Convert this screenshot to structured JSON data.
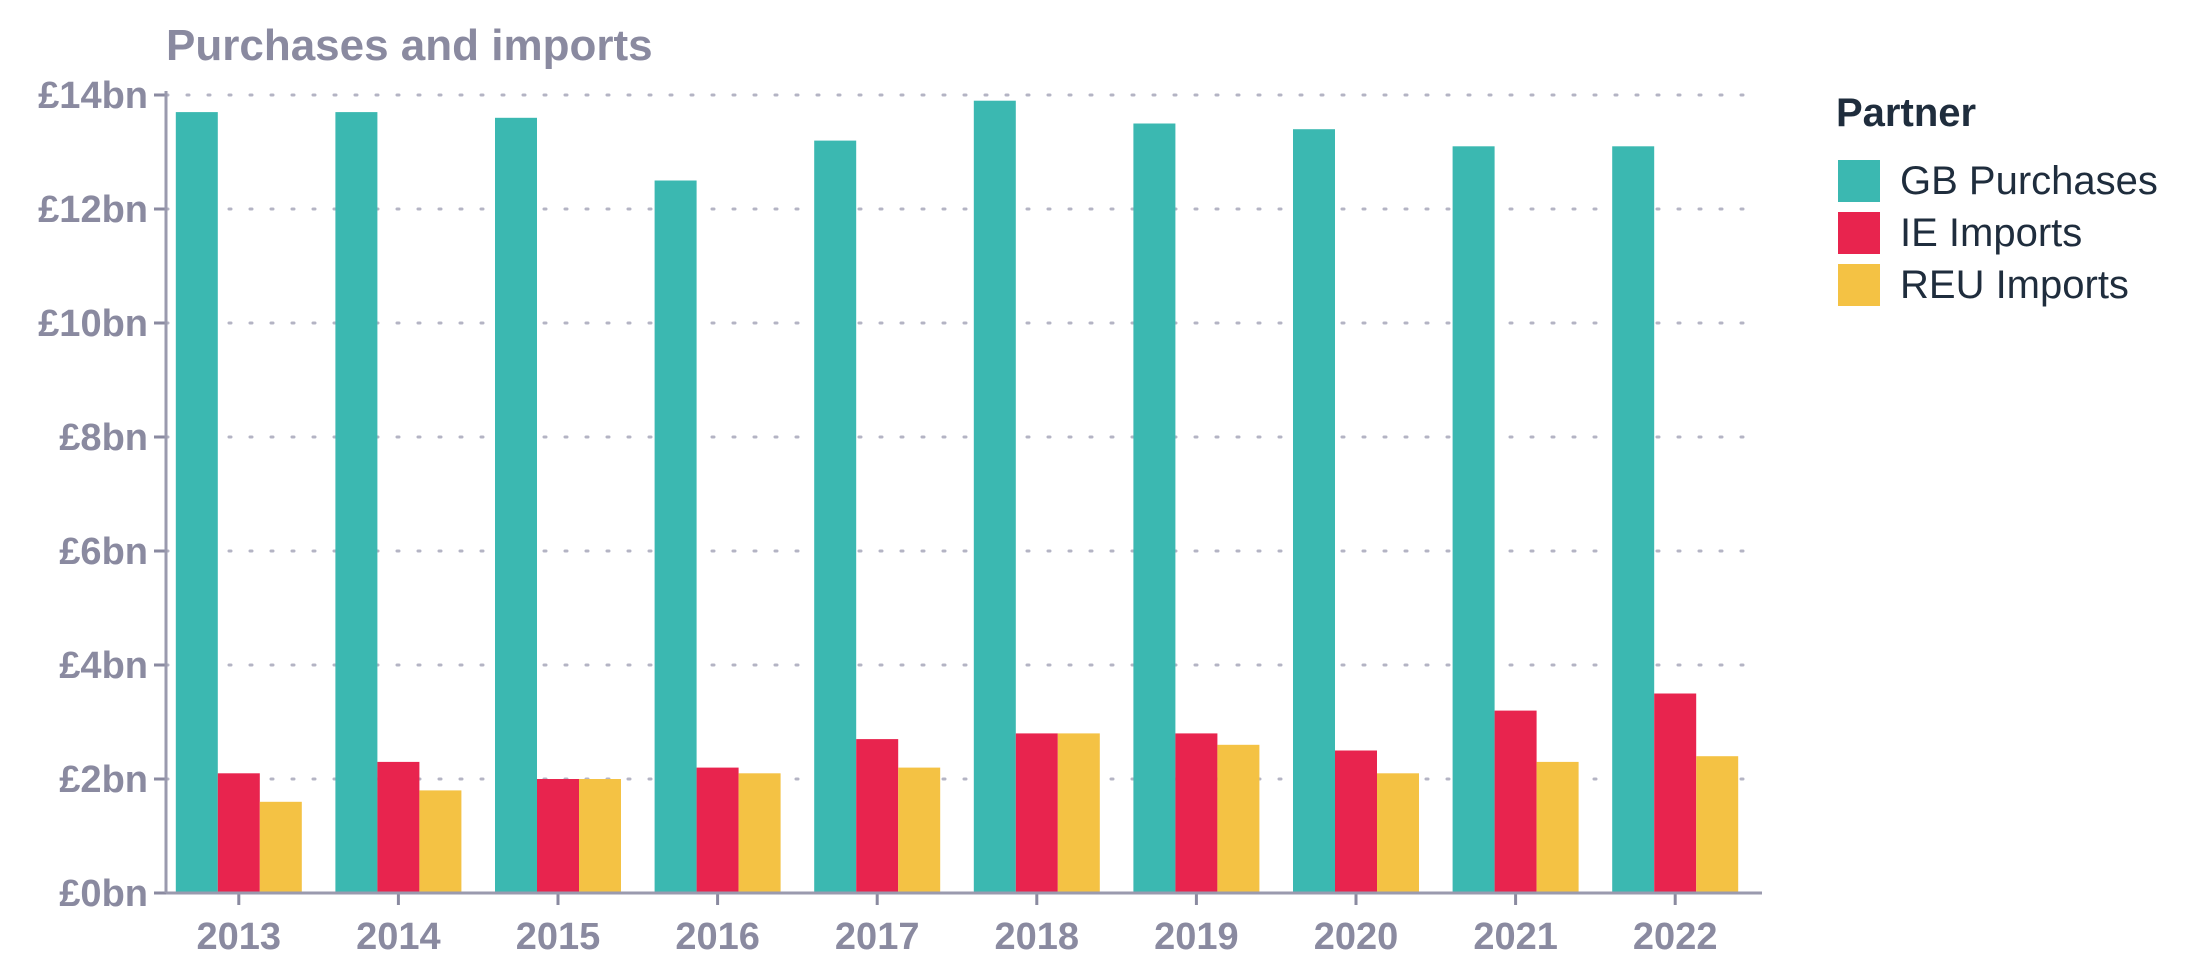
{
  "chart_data": {
    "type": "bar",
    "title": "Purchases and imports",
    "categories": [
      "2013",
      "2014",
      "2015",
      "2016",
      "2017",
      "2018",
      "2019",
      "2020",
      "2021",
      "2022"
    ],
    "series": [
      {
        "name": "GB Purchases",
        "color": "#3bb8b1",
        "values": [
          13.7,
          13.7,
          13.6,
          12.5,
          13.2,
          13.9,
          13.5,
          13.4,
          13.1,
          13.1
        ]
      },
      {
        "name": "IE Imports",
        "color": "#e8244e",
        "values": [
          2.1,
          2.3,
          2.0,
          2.2,
          2.7,
          2.8,
          2.8,
          2.5,
          3.2,
          3.5
        ]
      },
      {
        "name": "REU Imports",
        "color": "#f4c244",
        "values": [
          1.6,
          1.8,
          2.0,
          2.1,
          2.2,
          2.8,
          2.6,
          2.1,
          2.3,
          2.4
        ]
      }
    ],
    "ylim": [
      0,
      14
    ],
    "yticks": [
      0,
      2,
      4,
      6,
      8,
      10,
      12,
      14
    ],
    "ytick_labels": [
      "£0bn",
      "£2bn",
      "£4bn",
      "£6bn",
      "£8bn",
      "£10bn",
      "£12bn",
      "£14bn"
    ],
    "grid": true,
    "legend": {
      "title": "Partner",
      "position": "right"
    }
  }
}
